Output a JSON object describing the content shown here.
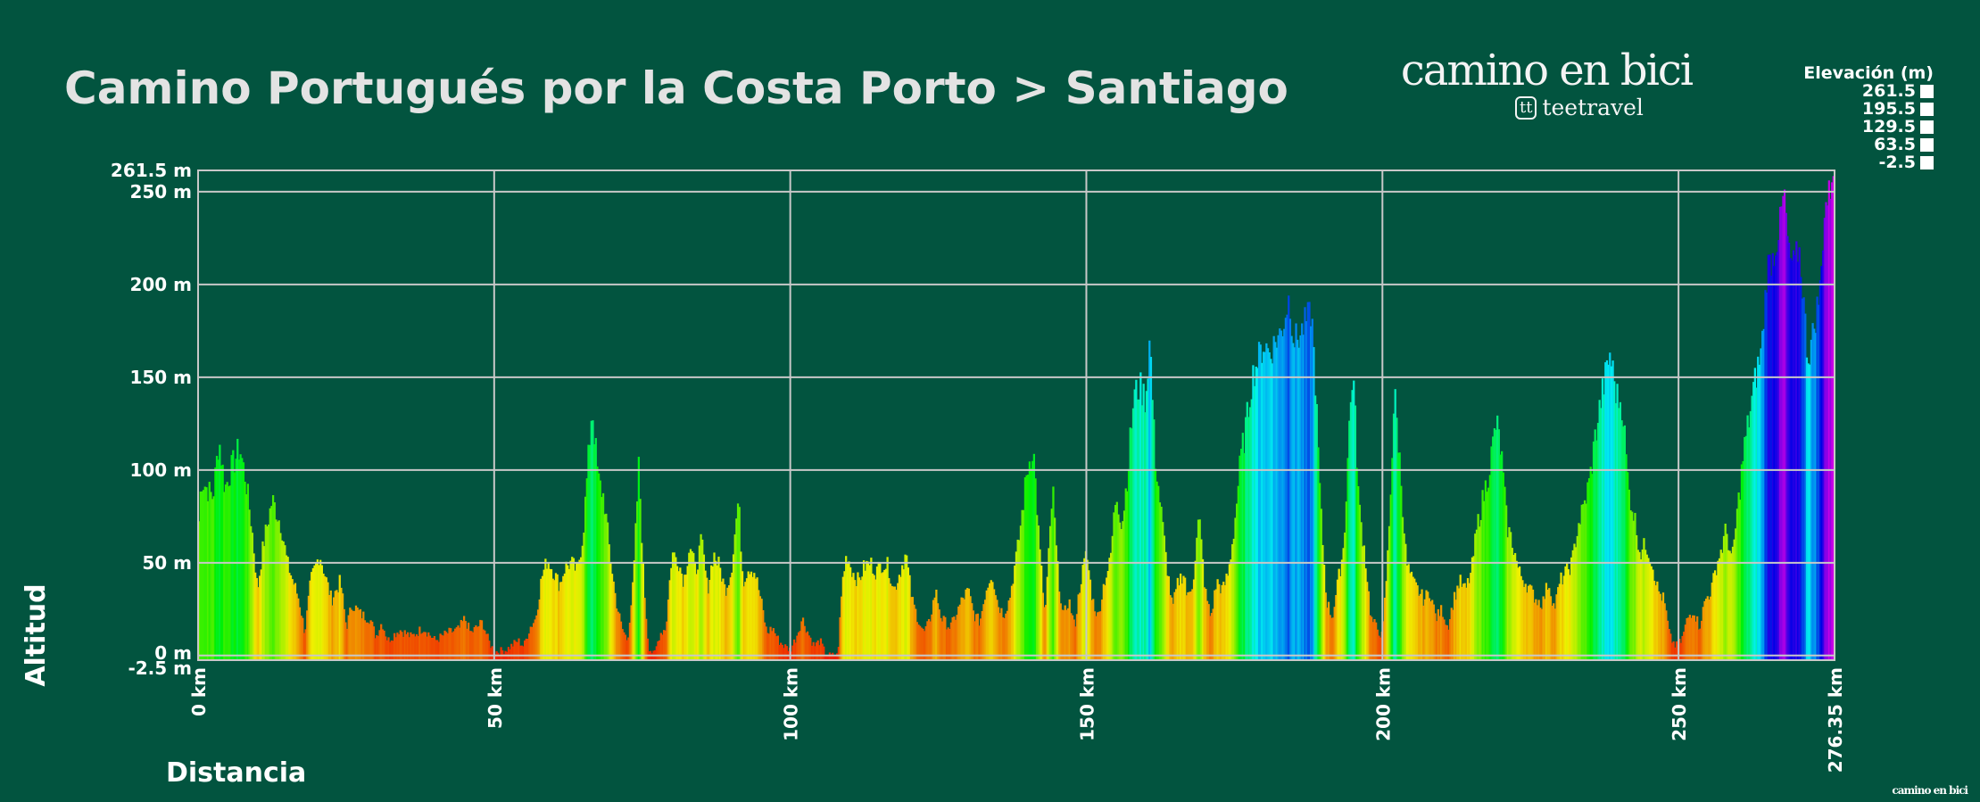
{
  "title": "Camino Portugués por la Costa Porto > Santiago",
  "logo": {
    "main": "camino en bici",
    "sub_mark": "tt",
    "sub": "teetravel"
  },
  "footer_logo": "camino en bici",
  "colors": {
    "background": "#02543f",
    "grid": "#c8c8c8",
    "low": "#e82000",
    "high": "#c000e0"
  },
  "chart_data": {
    "type": "area",
    "title": "Camino Portugués por la Costa Porto > Santiago",
    "xlabel": "Distancia",
    "ylabel": "Altitud",
    "xlim": [
      0,
      276.35
    ],
    "ylim": [
      -2.5,
      261.5
    ],
    "grid": true,
    "x_ticks": [
      "0 km",
      "50 km",
      "100 km",
      "150 km",
      "200 km",
      "250 km",
      "276.35 km"
    ],
    "x_tick_values": [
      0,
      50,
      100,
      150,
      200,
      250,
      276.35
    ],
    "y_ticks": [
      "261.5 m",
      "250 m",
      "200 m",
      "150 m",
      "100 m",
      "50 m",
      "0 m",
      "-2.5 m"
    ],
    "y_tick_values": [
      261.5,
      250,
      200,
      150,
      100,
      50,
      0,
      -2.5
    ],
    "color_scale": "elevation (red → yellow → green → cyan → blue → magenta)",
    "legend": {
      "title": "Elevación (m)",
      "placement": "top-right",
      "entries": [
        "261.5",
        "195.5",
        "129.5",
        "63.5",
        "-2.5"
      ]
    },
    "profile_km_m": [
      [
        0,
        65
      ],
      [
        0.5,
        95
      ],
      [
        1.5,
        90
      ],
      [
        2.5,
        85
      ],
      [
        3.5,
        117
      ],
      [
        4.5,
        90
      ],
      [
        5.5,
        100
      ],
      [
        7,
        112
      ],
      [
        8,
        95
      ],
      [
        9,
        70
      ],
      [
        10,
        35
      ],
      [
        11,
        60
      ],
      [
        12.5,
        84
      ],
      [
        14,
        70
      ],
      [
        15,
        50
      ],
      [
        16,
        40
      ],
      [
        17,
        30
      ],
      [
        18,
        12
      ],
      [
        19,
        40
      ],
      [
        20.5,
        55
      ],
      [
        21.5,
        42
      ],
      [
        22.5,
        30
      ],
      [
        24,
        40
      ],
      [
        25,
        15
      ],
      [
        26,
        28
      ],
      [
        27.5,
        22
      ],
      [
        29,
        20
      ],
      [
        30,
        10
      ],
      [
        31,
        18
      ],
      [
        32,
        8
      ],
      [
        34,
        14
      ],
      [
        36,
        10
      ],
      [
        38,
        15
      ],
      [
        40,
        8
      ],
      [
        42,
        12
      ],
      [
        44,
        14
      ],
      [
        45,
        20
      ],
      [
        46,
        12
      ],
      [
        48,
        18
      ],
      [
        49,
        8
      ],
      [
        50,
        2
      ],
      [
        52,
        3
      ],
      [
        54,
        8
      ],
      [
        55,
        5
      ],
      [
        56,
        15
      ],
      [
        57,
        20
      ],
      [
        58,
        42
      ],
      [
        59,
        52
      ],
      [
        60,
        45
      ],
      [
        61,
        38
      ],
      [
        62,
        48
      ],
      [
        63,
        50
      ],
      [
        64,
        45
      ],
      [
        65,
        65
      ],
      [
        66.5,
        135
      ],
      [
        67.5,
        95
      ],
      [
        68.5,
        85
      ],
      [
        69.5,
        55
      ],
      [
        70.5,
        30
      ],
      [
        71.5,
        15
      ],
      [
        72.5,
        8
      ],
      [
        73.5,
        40
      ],
      [
        74.4,
        103
      ],
      [
        75.2,
        40
      ],
      [
        76,
        5
      ],
      [
        77,
        0
      ],
      [
        78,
        12
      ],
      [
        79,
        15
      ],
      [
        80,
        55
      ],
      [
        81,
        52
      ],
      [
        82,
        40
      ],
      [
        83,
        60
      ],
      [
        84,
        45
      ],
      [
        85,
        62
      ],
      [
        86,
        35
      ],
      [
        87,
        55
      ],
      [
        88,
        48
      ],
      [
        89,
        35
      ],
      [
        90,
        45
      ],
      [
        91.2,
        84
      ],
      [
        92,
        40
      ],
      [
        93,
        48
      ],
      [
        94,
        45
      ],
      [
        95,
        30
      ],
      [
        96,
        12
      ],
      [
        97,
        15
      ],
      [
        98,
        8
      ],
      [
        99,
        5
      ],
      [
        100,
        3
      ],
      [
        101,
        10
      ],
      [
        102,
        20
      ],
      [
        103,
        12
      ],
      [
        104,
        5
      ],
      [
        105,
        8
      ],
      [
        106,
        0
      ],
      [
        107,
        0
      ],
      [
        108,
        0
      ],
      [
        108.8,
        40
      ],
      [
        109.5,
        55
      ],
      [
        110.5,
        45
      ],
      [
        111.5,
        40
      ],
      [
        112.5,
        48
      ],
      [
        113.5,
        50
      ],
      [
        114.5,
        45
      ],
      [
        115.5,
        50
      ],
      [
        116.5,
        48
      ],
      [
        117.5,
        35
      ],
      [
        118.5,
        45
      ],
      [
        119.5,
        55
      ],
      [
        120.5,
        30
      ],
      [
        121.5,
        20
      ],
      [
        122.5,
        12
      ],
      [
        123.5,
        18
      ],
      [
        124.5,
        35
      ],
      [
        125.5,
        20
      ],
      [
        127,
        15
      ],
      [
        128,
        22
      ],
      [
        129,
        30
      ],
      [
        130,
        35
      ],
      [
        131,
        22
      ],
      [
        132,
        18
      ],
      [
        133,
        35
      ],
      [
        134,
        45
      ],
      [
        135,
        28
      ],
      [
        136,
        22
      ],
      [
        137,
        30
      ],
      [
        138.5,
        60
      ],
      [
        140,
        100
      ],
      [
        141,
        113
      ],
      [
        142,
        60
      ],
      [
        143,
        20
      ],
      [
        144.3,
        90
      ],
      [
        145,
        50
      ],
      [
        146,
        20
      ],
      [
        147,
        30
      ],
      [
        148,
        15
      ],
      [
        149,
        40
      ],
      [
        150,
        55
      ],
      [
        151,
        30
      ],
      [
        152,
        20
      ],
      [
        153,
        40
      ],
      [
        154,
        50
      ],
      [
        155,
        88
      ],
      [
        156,
        70
      ],
      [
        157,
        100
      ],
      [
        158,
        140
      ],
      [
        159,
        145
      ],
      [
        160,
        138
      ],
      [
        160.7,
        172
      ],
      [
        161.5,
        110
      ],
      [
        162.5,
        80
      ],
      [
        163.5,
        50
      ],
      [
        164.5,
        25
      ],
      [
        165.5,
        40
      ],
      [
        166.5,
        45
      ],
      [
        167,
        30
      ],
      [
        168,
        40
      ],
      [
        169,
        75
      ],
      [
        170,
        35
      ],
      [
        171,
        20
      ],
      [
        172,
        40
      ],
      [
        173,
        35
      ],
      [
        174,
        45
      ],
      [
        175,
        70
      ],
      [
        176,
        105
      ],
      [
        177,
        125
      ],
      [
        178,
        150
      ],
      [
        179,
        160
      ],
      [
        180,
        168
      ],
      [
        181,
        163
      ],
      [
        182,
        170
      ],
      [
        183,
        175
      ],
      [
        184.2,
        193
      ],
      [
        185,
        170
      ],
      [
        186,
        172
      ],
      [
        187,
        180
      ],
      [
        188,
        185
      ],
      [
        188.6,
        150
      ],
      [
        189.5,
        80
      ],
      [
        190.5,
        30
      ],
      [
        191.5,
        20
      ],
      [
        192.5,
        40
      ],
      [
        193.5,
        60
      ],
      [
        194.3,
        120
      ],
      [
        195,
        155
      ],
      [
        196,
        80
      ],
      [
        197,
        55
      ],
      [
        198,
        20
      ],
      [
        199,
        15
      ],
      [
        200,
        10
      ],
      [
        201,
        60
      ],
      [
        202,
        142
      ],
      [
        203,
        100
      ],
      [
        204,
        50
      ],
      [
        205,
        40
      ],
      [
        206,
        35
      ],
      [
        207,
        30
      ],
      [
        208,
        35
      ],
      [
        209,
        20
      ],
      [
        210,
        25
      ],
      [
        211,
        15
      ],
      [
        212,
        30
      ],
      [
        213,
        40
      ],
      [
        214,
        35
      ],
      [
        215,
        45
      ],
      [
        216,
        70
      ],
      [
        217,
        85
      ],
      [
        218,
        100
      ],
      [
        219.2,
        126
      ],
      [
        220,
        110
      ],
      [
        221,
        70
      ],
      [
        222,
        60
      ],
      [
        223,
        45
      ],
      [
        224,
        40
      ],
      [
        225,
        35
      ],
      [
        226,
        30
      ],
      [
        227,
        28
      ],
      [
        228,
        40
      ],
      [
        229,
        25
      ],
      [
        230,
        40
      ],
      [
        231,
        45
      ],
      [
        232,
        50
      ],
      [
        233,
        70
      ],
      [
        234,
        80
      ],
      [
        235,
        95
      ],
      [
        236,
        120
      ],
      [
        237,
        140
      ],
      [
        238.4,
        163
      ],
      [
        239.5,
        140
      ],
      [
        240.5,
        135
      ],
      [
        241.5,
        90
      ],
      [
        242.5,
        75
      ],
      [
        243.5,
        55
      ],
      [
        244.5,
        60
      ],
      [
        245.5,
        50
      ],
      [
        246.5,
        35
      ],
      [
        247.5,
        30
      ],
      [
        248.5,
        10
      ],
      [
        249.5,
        5
      ],
      [
        250.5,
        8
      ],
      [
        251.5,
        20
      ],
      [
        252.5,
        25
      ],
      [
        253.5,
        15
      ],
      [
        254.5,
        30
      ],
      [
        255.5,
        35
      ],
      [
        256.5,
        50
      ],
      [
        257.5,
        60
      ],
      [
        258,
        68
      ],
      [
        259,
        50
      ],
      [
        260,
        80
      ],
      [
        261,
        110
      ],
      [
        262,
        130
      ],
      [
        263,
        150
      ],
      [
        264,
        165
      ],
      [
        265,
        210
      ],
      [
        266,
        215
      ],
      [
        267,
        230
      ],
      [
        267.8,
        250
      ],
      [
        268.6,
        215
      ],
      [
        269.5,
        210
      ],
      [
        270.3,
        220
      ],
      [
        271,
        195
      ],
      [
        271.8,
        160
      ],
      [
        272.5,
        170
      ],
      [
        273,
        180
      ],
      [
        274,
        200
      ],
      [
        274.6,
        240
      ],
      [
        275.5,
        250
      ],
      [
        276.35,
        261.5
      ]
    ]
  }
}
